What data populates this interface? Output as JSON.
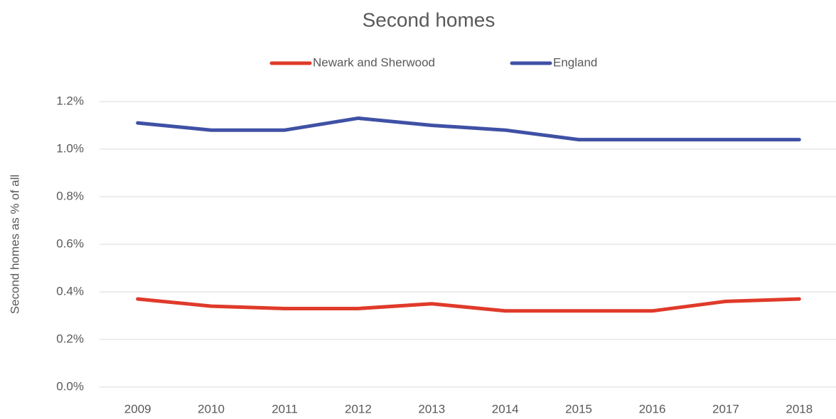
{
  "chart_data": {
    "type": "line",
    "title": "Second homes",
    "y_label": "Second homes as % of all",
    "categories": [
      "2009",
      "2010",
      "2011",
      "2012",
      "2013",
      "2014",
      "2015",
      "2016",
      "2017",
      "2018"
    ],
    "series": [
      {
        "name": "Newark and Sherwood",
        "color": "#e03a2a",
        "values": [
          0.37,
          0.34,
          0.33,
          0.33,
          0.35,
          0.32,
          0.32,
          0.32,
          0.36,
          0.37
        ]
      },
      {
        "name": "England",
        "color": "#3f51a5",
        "values": [
          1.11,
          1.08,
          1.08,
          1.13,
          1.1,
          1.08,
          1.04,
          1.04,
          1.04,
          1.04
        ]
      }
    ],
    "ylim": [
      0,
      1.2
    ],
    "yticks": [
      {
        "value": 0,
        "label": "0.0%"
      },
      {
        "value": 0.2,
        "label": "0.2%"
      },
      {
        "value": 0.4,
        "label": "0.4%"
      },
      {
        "value": 0.6,
        "label": "0.6%"
      },
      {
        "value": 0.8,
        "label": "0.8%"
      },
      {
        "value": 1.0,
        "label": "1.0%"
      },
      {
        "value": 1.2,
        "label": "1.2%"
      }
    ],
    "grid": true,
    "legend": "top"
  }
}
